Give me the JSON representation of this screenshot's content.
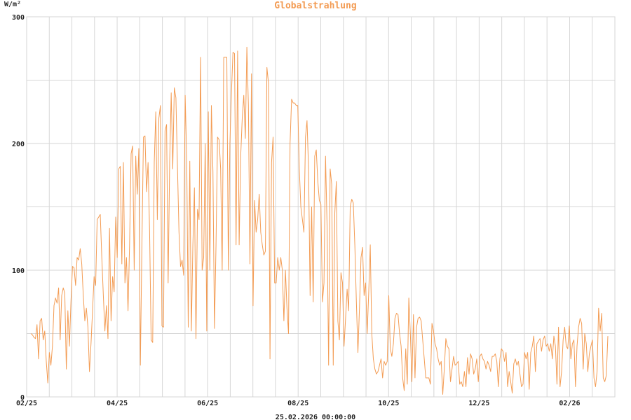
{
  "chart_data": {
    "type": "line",
    "title": "Globalstrahlung",
    "ylabel": "W/m²",
    "footer": "25.02.2026 00:00:00",
    "ylim": [
      0,
      300
    ],
    "yticks": [
      "0",
      "100",
      "200",
      "300"
    ],
    "xlim": [
      0,
      26
    ],
    "xtick_positions": [
      0,
      4,
      8,
      12,
      16,
      20,
      24
    ],
    "xticks": [
      "02/25",
      "04/25",
      "06/25",
      "08/25",
      "10/25",
      "12/25",
      "02/26"
    ],
    "grid": true,
    "color": "#f39c54",
    "series": [
      {
        "values": [
          50,
          49,
          47,
          46,
          57,
          30,
          60,
          62,
          45,
          52,
          28,
          11,
          35,
          25,
          40,
          72,
          78,
          74,
          86,
          45,
          80,
          86,
          82,
          22,
          68,
          40,
          75,
          103,
          102,
          88,
          110,
          108,
          117,
          105,
          80,
          60,
          70,
          55,
          20,
          42,
          68,
          95,
          88,
          140,
          142,
          144,
          110,
          80,
          52,
          72,
          46,
          133,
          60,
          95,
          83,
          142,
          110,
          180,
          182,
          105,
          185,
          90,
          110,
          68,
          120,
          192,
          198,
          100,
          190,
          160,
          196,
          25,
          120,
          205,
          206,
          162,
          185,
          130,
          45,
          43,
          185,
          225,
          140,
          220,
          230,
          56,
          55,
          210,
          215,
          90,
          185,
          240,
          180,
          244,
          236,
          182,
          130,
          103,
          108,
          96,
          238,
          188,
          55,
          186,
          52,
          120,
          165,
          46,
          148,
          140,
          268,
          100,
          110,
          200,
          52,
          225,
          100,
          230,
          178,
          54,
          120,
          205,
          203,
          180,
          100,
          268,
          268,
          268,
          100,
          200,
          240,
          272,
          271,
          120,
          273,
          120,
          190,
          220,
          238,
          204,
          276,
          230,
          105,
          255,
          72,
          155,
          130,
          140,
          160,
          130,
          120,
          112,
          115,
          260,
          248,
          30,
          185,
          205,
          90,
          90,
          110,
          100,
          110,
          100,
          60,
          100,
          70,
          50,
          200,
          235,
          232,
          232,
          230,
          230,
          180,
          150,
          140,
          130,
          205,
          218,
          180,
          80,
          150,
          75,
          190,
          195,
          170,
          155,
          152,
          75,
          90,
          190,
          135,
          25,
          180,
          168,
          25,
          145,
          170,
          60,
          45,
          98,
          90,
          40,
          62,
          85,
          68,
          150,
          156,
          153,
          120,
          75,
          35,
          70,
          110,
          118,
          80,
          90,
          50,
          82,
          120,
          50,
          30,
          22,
          18,
          20,
          25,
          30,
          15,
          28,
          25,
          28,
          80,
          38,
          32,
          42,
          62,
          66,
          65,
          50,
          40,
          15,
          5,
          38,
          10,
          78,
          50,
          12,
          65,
          15,
          55,
          62,
          63,
          60,
          45,
          30,
          15,
          15,
          15,
          10,
          58,
          52,
          42,
          38,
          30,
          25,
          28,
          2,
          22,
          46,
          40,
          38,
          12,
          22,
          32,
          25,
          26,
          28,
          10,
          12,
          8,
          20,
          8,
          31,
          18,
          34,
          30,
          18,
          22,
          30,
          12,
          32,
          34,
          30,
          28,
          22,
          28,
          25,
          20,
          32,
          32,
          34,
          28,
          8,
          30,
          38,
          36,
          28,
          35,
          8,
          20,
          12,
          3,
          26,
          30,
          25,
          28,
          18,
          8,
          10,
          35,
          30,
          35,
          6,
          35,
          40,
          48,
          20,
          42,
          44,
          46,
          36,
          45,
          48,
          40,
          42,
          36,
          42,
          30,
          48,
          40,
          10,
          55,
          8,
          20,
          45,
          55,
          40,
          38,
          56,
          30,
          42,
          45,
          8,
          40,
          55,
          62,
          58,
          22,
          50,
          42,
          20,
          34,
          40,
          45,
          15,
          8,
          20,
          70,
          52,
          66,
          15,
          12,
          17,
          48
        ]
      }
    ]
  }
}
